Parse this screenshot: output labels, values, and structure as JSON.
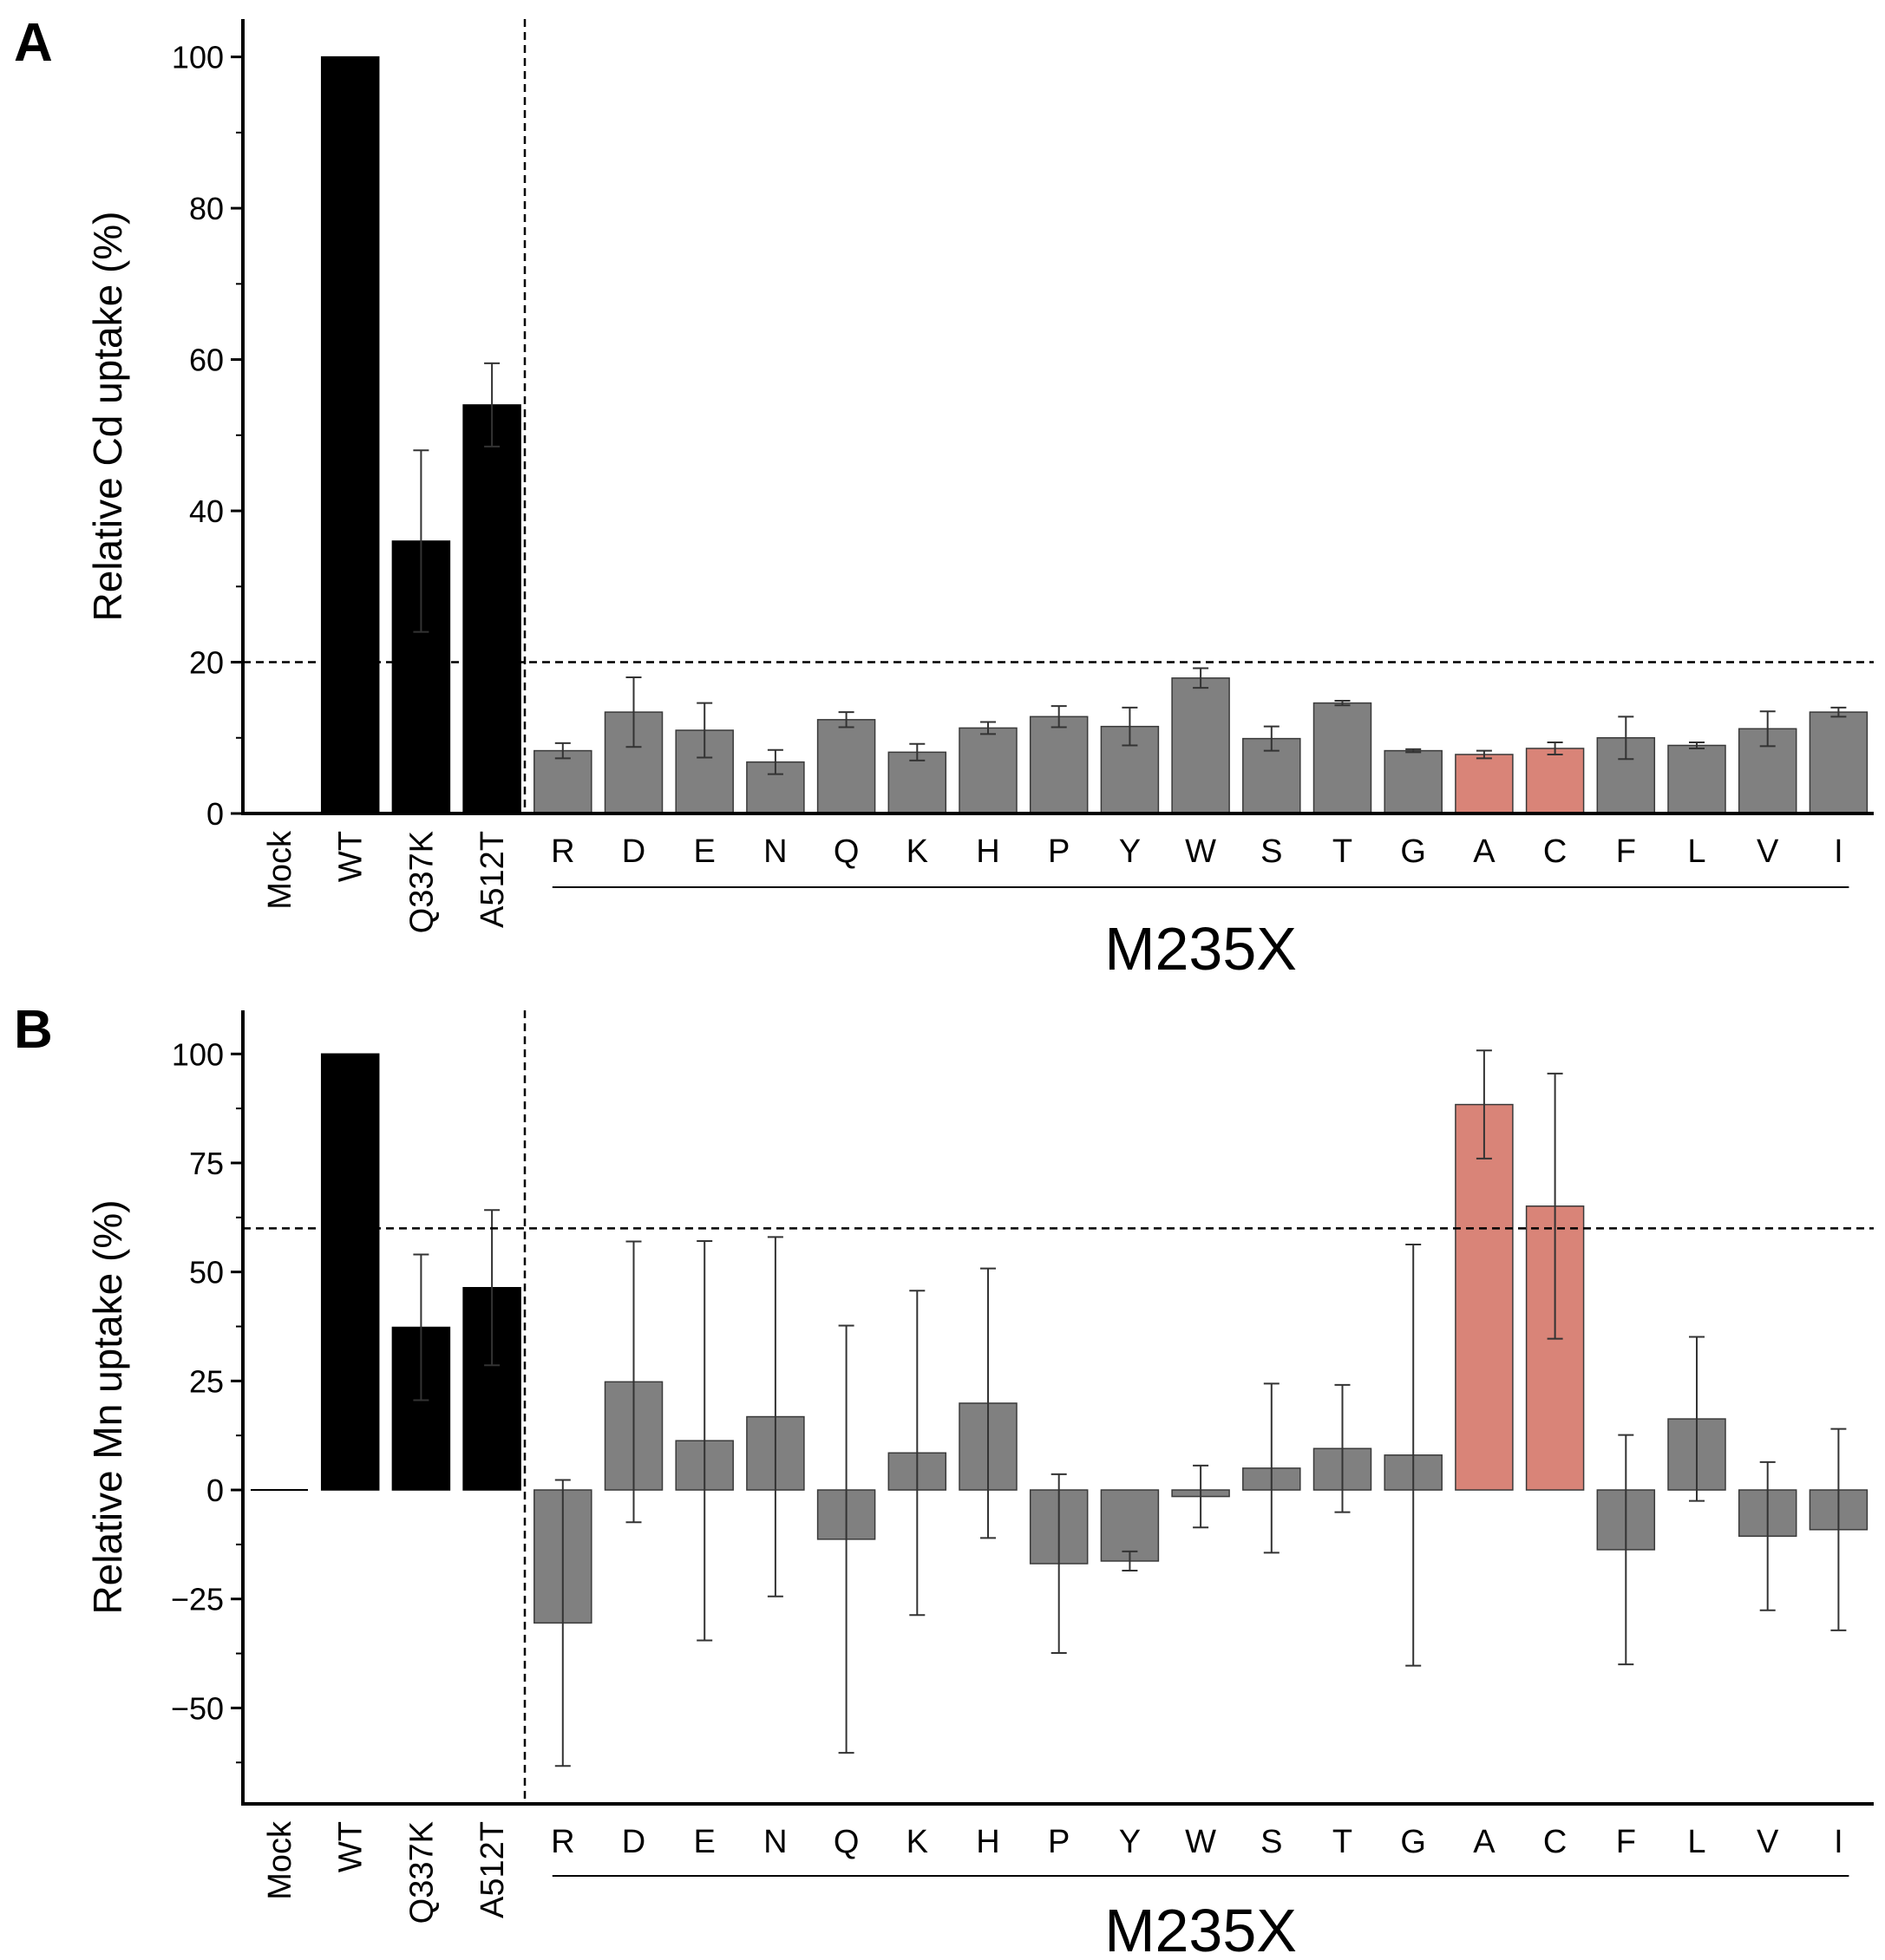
{
  "colors": {
    "wt_group": "#000000",
    "mutant": "#808080",
    "highlight": "#d98478",
    "axis": "#000000",
    "errorbar": "#333333"
  },
  "chart_data": [
    {
      "type": "bar",
      "panel_label": "A",
      "ylabel": "Relative Cd uptake (%)",
      "ylim": [
        0,
        105
      ],
      "yticks": [
        0,
        20,
        40,
        60,
        80,
        100
      ],
      "ytick_labels": [
        "0",
        "20",
        "40",
        "60",
        "80",
        "100"
      ],
      "threshold": 20,
      "group_label": "M235X",
      "categories": [
        "Mock",
        "WT",
        "Q337K",
        "A512T",
        "R",
        "D",
        "E",
        "N",
        "Q",
        "K",
        "H",
        "P",
        "Y",
        "W",
        "S",
        "T",
        "G",
        "A",
        "C",
        "F",
        "L",
        "V",
        "I"
      ],
      "values": [
        0,
        100,
        36,
        54,
        8.3,
        13.4,
        11,
        6.8,
        12.4,
        8.1,
        11.3,
        12.8,
        11.5,
        17.9,
        9.9,
        14.6,
        8.3,
        7.8,
        8.6,
        10,
        9,
        11.2,
        13.4
      ],
      "errors": [
        0,
        0,
        12,
        5.5,
        1,
        4.6,
        3.6,
        1.6,
        1,
        1.1,
        0.8,
        1.4,
        2.5,
        1.3,
        1.6,
        0.3,
        0.2,
        0.5,
        0.8,
        2.8,
        0.4,
        2.3,
        0.6
      ],
      "bar_colors": [
        "none",
        "#000000",
        "#000000",
        "#000000",
        "#808080",
        "#808080",
        "#808080",
        "#808080",
        "#808080",
        "#808080",
        "#808080",
        "#808080",
        "#808080",
        "#808080",
        "#808080",
        "#808080",
        "#808080",
        "#d98478",
        "#d98478",
        "#808080",
        "#808080",
        "#808080",
        "#808080"
      ]
    },
    {
      "type": "bar",
      "panel_label": "B",
      "ylabel": "Relative Mn uptake (%)",
      "ylim": [
        -72,
        110
      ],
      "yticks": [
        -50,
        -25,
        0,
        25,
        50,
        75,
        100
      ],
      "ytick_labels": [
        "−50",
        "−25",
        "0",
        "25",
        "50",
        "75",
        "100"
      ],
      "threshold": 60,
      "group_label": "M235X",
      "categories": [
        "Mock",
        "WT",
        "Q337K",
        "A512T",
        "R",
        "D",
        "E",
        "N",
        "Q",
        "K",
        "H",
        "P",
        "Y",
        "W",
        "S",
        "T",
        "G",
        "A",
        "C",
        "F",
        "L",
        "V",
        "I"
      ],
      "values": [
        0,
        100,
        37.3,
        46.4,
        -30.5,
        24.8,
        11.3,
        16.8,
        -11.3,
        8.5,
        19.9,
        -16.9,
        -16.3,
        -1.5,
        5,
        9.5,
        8,
        88.4,
        65.1,
        -13.7,
        16.3,
        -10.6,
        -9.1
      ],
      "errors": [
        0,
        0,
        16.7,
        17.8,
        32.8,
        32.2,
        45.8,
        41.2,
        49,
        37.2,
        30.9,
        20.5,
        2.2,
        7.1,
        19.4,
        14.6,
        48.3,
        12.4,
        30.4,
        26.3,
        18.8,
        17,
        23.1
      ],
      "bar_colors": [
        "#000000",
        "#000000",
        "#000000",
        "#000000",
        "#808080",
        "#808080",
        "#808080",
        "#808080",
        "#808080",
        "#808080",
        "#808080",
        "#808080",
        "#808080",
        "#808080",
        "#808080",
        "#808080",
        "#808080",
        "#d98478",
        "#d98478",
        "#808080",
        "#808080",
        "#808080",
        "#808080"
      ]
    }
  ]
}
